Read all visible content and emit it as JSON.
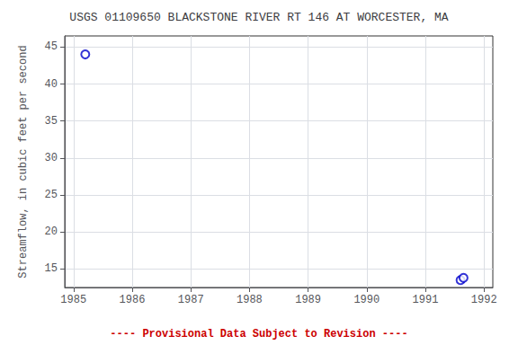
{
  "chart_data": {
    "type": "scatter",
    "title": "USGS 01109650 BLACKSTONE RIVER RT 146 AT WORCESTER, MA",
    "ylabel": "Streamflow, in cubic feet per second",
    "annotations": [
      {
        "text": "---- Provisional Data Subject to Revision ----",
        "color": "#cc0000"
      }
    ],
    "x": [
      1985.2,
      1991.6,
      1991.65
    ],
    "values": [
      44.0,
      13.5,
      13.8
    ],
    "color": "#0000cc",
    "marker": "circle",
    "xlim": [
      1984.85,
      1992.15
    ],
    "xticks": [
      1985,
      1986,
      1987,
      1988,
      1989,
      1990,
      1991,
      1992
    ],
    "ylim": [
      12.5,
      46.5
    ],
    "yticks": [
      15,
      20,
      25,
      30,
      35,
      40,
      45
    ],
    "grid": true
  }
}
